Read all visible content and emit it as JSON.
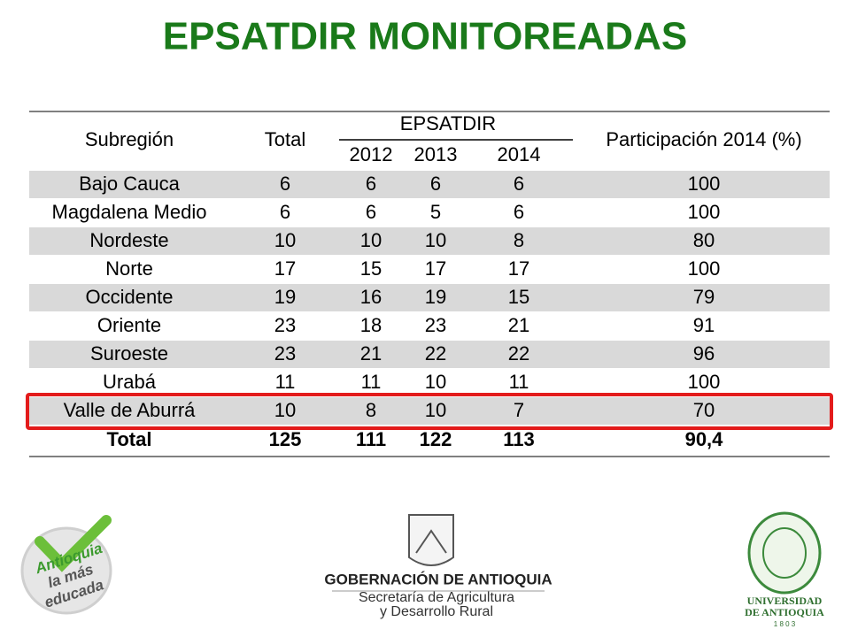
{
  "title": "EPSATDIR MONITOREADAS",
  "table": {
    "header": {
      "subregion": "Subregión",
      "total": "Total",
      "group": "EPSATDIR",
      "years": [
        "2012",
        "2013",
        "2014"
      ],
      "participation": "Participación 2014 (%)"
    },
    "rows": [
      [
        "Bajo Cauca",
        6,
        6,
        6,
        6,
        100
      ],
      [
        "Magdalena Medio",
        6,
        6,
        5,
        6,
        100
      ],
      [
        "Nordeste",
        10,
        10,
        10,
        8,
        80
      ],
      [
        "Norte",
        17,
        15,
        17,
        17,
        100
      ],
      [
        "Occidente",
        19,
        16,
        19,
        15,
        79
      ],
      [
        "Oriente",
        23,
        18,
        23,
        21,
        91
      ],
      [
        "Suroeste",
        23,
        21,
        22,
        22,
        96
      ],
      [
        "Urabá",
        11,
        11,
        10,
        11,
        100
      ],
      [
        "Valle de Aburrá",
        10,
        8,
        10,
        7,
        70
      ]
    ],
    "total_row": [
      "Total",
      125,
      111,
      122,
      113,
      "90,4"
    ],
    "highlighted_row": 8
  },
  "logos": {
    "campaign": [
      "Antioquia",
      "la más",
      "educada"
    ],
    "government": {
      "name": "GOBERNACIÓN DE ANTIOQUIA",
      "unit": [
        "Secretaría de Agricultura",
        "y Desarrollo Rural"
      ]
    },
    "university": [
      "UNIVERSIDAD",
      "DE ANTIOQUIA",
      "1 8 0 3"
    ]
  }
}
